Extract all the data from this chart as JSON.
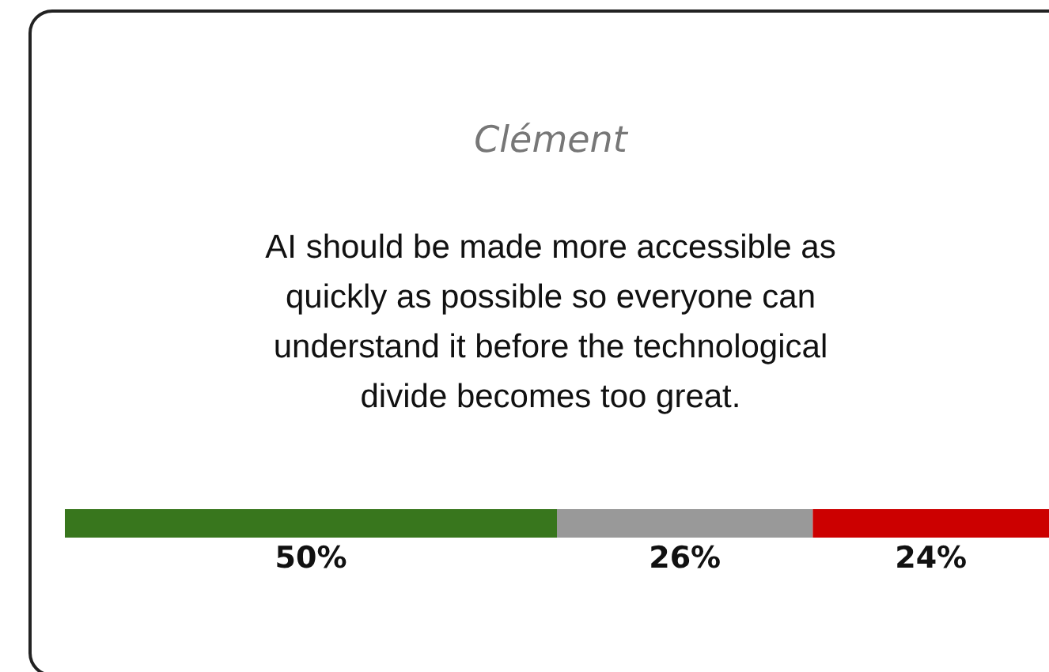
{
  "chart_data": {
    "type": "bar",
    "orientation": "horizontal",
    "stacked": true,
    "title": "Clément",
    "subtitle": "AI should be made more accessible as quickly as possible so everyone can understand it before the technological divide becomes too great.",
    "categories": [
      null
    ],
    "series": [
      {
        "color": "#38761d",
        "values": [
          50
        ],
        "value_labels": [
          "50%"
        ]
      },
      {
        "color": "#999999",
        "values": [
          26
        ],
        "value_labels": [
          "26%"
        ]
      },
      {
        "color": "#cc0000",
        "values": [
          24
        ],
        "value_labels": [
          "24%"
        ]
      }
    ]
  }
}
